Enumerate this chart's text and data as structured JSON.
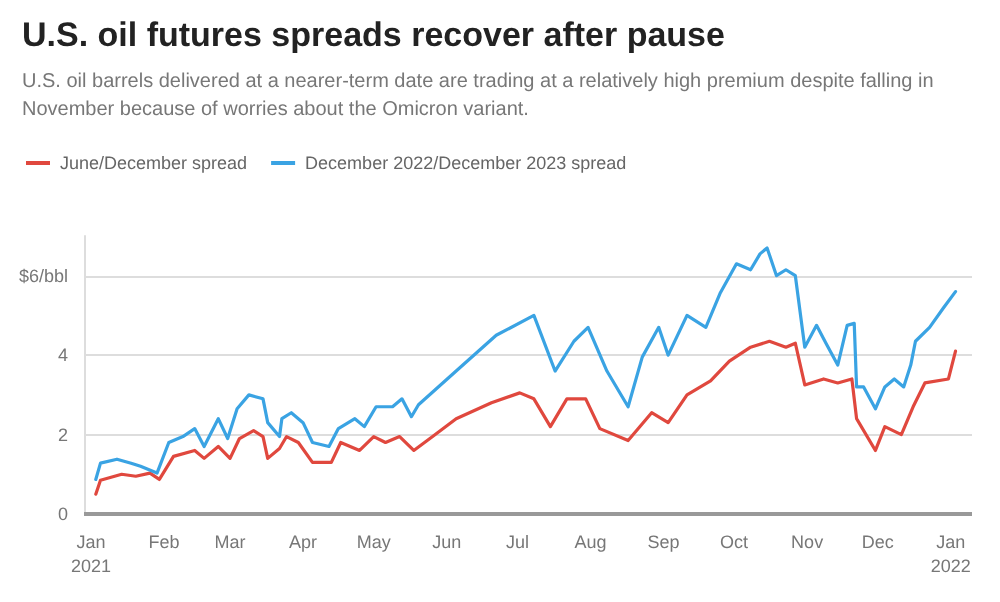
{
  "chart_data": {
    "type": "line",
    "title": "U.S. oil futures spreads recover after pause",
    "subtitle": "U.S. oil barrels delivered at a nearer-term date are trading at a relatively high premium despite falling in November because of worries about the Omicron variant.",
    "legend": "top left",
    "grid": "y",
    "marker": "none",
    "line_style": "solid",
    "xlim": [
      "2020-12-29",
      "2022-01-10"
    ],
    "xticks": [
      {
        "value": "2021-01-01",
        "label": "Jan\n2021"
      },
      {
        "value": "2021-02-01",
        "label": "Feb"
      },
      {
        "value": "2021-03-01",
        "label": "Mar"
      },
      {
        "value": "2021-04-01",
        "label": "Apr"
      },
      {
        "value": "2021-05-01",
        "label": "May"
      },
      {
        "value": "2021-06-01",
        "label": "Jun"
      },
      {
        "value": "2021-07-01",
        "label": "Jul"
      },
      {
        "value": "2021-08-01",
        "label": "Aug"
      },
      {
        "value": "2021-09-01",
        "label": "Sep"
      },
      {
        "value": "2021-10-01",
        "label": "Oct"
      },
      {
        "value": "2021-11-01",
        "label": "Nov"
      },
      {
        "value": "2021-12-01",
        "label": "Dec"
      },
      {
        "value": "2022-01-01",
        "label": "Jan\n2022"
      }
    ],
    "ylim": [
      0,
      7
    ],
    "yticks": [
      0,
      2,
      4,
      {
        "value": 6,
        "label": "$6/bbl"
      }
    ],
    "series": [
      {
        "name": "June/December spread",
        "color": "#e0483e",
        "x": [
          "2021-01-03",
          "2021-01-05",
          "2021-01-14",
          "2021-01-20",
          "2021-01-26",
          "2021-01-30",
          "2021-02-05",
          "2021-02-14",
          "2021-02-18",
          "2021-02-24",
          "2021-03-01",
          "2021-03-05",
          "2021-03-11",
          "2021-03-15",
          "2021-03-17",
          "2021-03-22",
          "2021-03-25",
          "2021-03-30",
          "2021-04-05",
          "2021-04-13",
          "2021-04-17",
          "2021-04-25",
          "2021-05-01",
          "2021-05-06",
          "2021-05-12",
          "2021-05-18",
          "2021-05-26",
          "2021-06-05",
          "2021-06-20",
          "2021-07-02",
          "2021-07-08",
          "2021-07-15",
          "2021-07-22",
          "2021-07-30",
          "2021-08-05",
          "2021-08-17",
          "2021-08-27",
          "2021-09-03",
          "2021-09-11",
          "2021-09-21",
          "2021-09-29",
          "2021-10-08",
          "2021-10-16",
          "2021-10-23",
          "2021-10-27",
          "2021-10-31",
          "2021-11-08",
          "2021-11-14",
          "2021-11-20",
          "2021-11-22",
          "2021-11-30",
          "2021-12-04",
          "2021-12-11",
          "2021-12-16",
          "2021-12-21",
          "2021-12-31",
          "2022-01-03"
        ],
        "values": [
          0.5,
          0.85,
          1.0,
          0.95,
          1.03,
          0.87,
          1.45,
          1.6,
          1.4,
          1.7,
          1.4,
          1.9,
          2.1,
          1.95,
          1.4,
          1.65,
          1.95,
          1.8,
          1.3,
          1.3,
          1.8,
          1.6,
          1.95,
          1.8,
          1.95,
          1.6,
          1.95,
          2.4,
          2.8,
          3.05,
          2.9,
          2.2,
          2.9,
          2.9,
          2.15,
          1.85,
          2.55,
          2.3,
          3.0,
          3.35,
          3.85,
          4.2,
          4.35,
          4.2,
          4.3,
          3.25,
          3.4,
          3.3,
          3.4,
          2.4,
          1.6,
          2.2,
          2.0,
          2.7,
          3.3,
          3.4,
          4.1
        ]
      },
      {
        "name": "December 2022/December 2023 spread",
        "color": "#3aa3e3",
        "x": [
          "2021-01-03",
          "2021-01-05",
          "2021-01-12",
          "2021-01-18",
          "2021-01-22",
          "2021-01-29",
          "2021-02-03",
          "2021-02-09",
          "2021-02-14",
          "2021-02-18",
          "2021-02-24",
          "2021-02-28",
          "2021-03-04",
          "2021-03-09",
          "2021-03-15",
          "2021-03-17",
          "2021-03-22",
          "2021-03-23",
          "2021-03-27",
          "2021-04-01",
          "2021-04-05",
          "2021-04-12",
          "2021-04-16",
          "2021-04-23",
          "2021-04-27",
          "2021-05-02",
          "2021-05-09",
          "2021-05-13",
          "2021-05-17",
          "2021-05-20",
          "2021-06-05",
          "2021-06-22",
          "2021-07-08",
          "2021-07-17",
          "2021-07-25",
          "2021-07-31",
          "2021-08-08",
          "2021-08-17",
          "2021-08-23",
          "2021-08-30",
          "2021-09-03",
          "2021-09-11",
          "2021-09-19",
          "2021-09-25",
          "2021-10-02",
          "2021-10-08",
          "2021-10-12",
          "2021-10-15",
          "2021-10-19",
          "2021-10-23",
          "2021-10-27",
          "2021-10-31",
          "2021-11-05",
          "2021-11-09",
          "2021-11-14",
          "2021-11-18",
          "2021-11-21",
          "2021-11-22",
          "2021-11-25",
          "2021-11-30",
          "2021-12-04",
          "2021-12-08",
          "2021-12-12",
          "2021-12-15",
          "2021-12-17",
          "2021-12-23",
          "2021-12-29",
          "2022-01-03"
        ],
        "values": [
          0.87,
          1.28,
          1.38,
          1.28,
          1.2,
          1.03,
          1.8,
          1.95,
          2.15,
          1.7,
          2.4,
          1.9,
          2.65,
          3.0,
          2.9,
          2.3,
          1.95,
          2.4,
          2.55,
          2.3,
          1.8,
          1.7,
          2.15,
          2.4,
          2.2,
          2.7,
          2.7,
          2.9,
          2.45,
          2.75,
          3.6,
          4.5,
          5.0,
          3.6,
          4.35,
          4.7,
          3.6,
          2.7,
          3.95,
          4.7,
          4.0,
          5.0,
          4.7,
          5.55,
          6.3,
          6.15,
          6.55,
          6.7,
          6.0,
          6.15,
          6.0,
          4.2,
          4.75,
          4.3,
          3.75,
          4.75,
          4.8,
          3.2,
          3.2,
          2.65,
          3.2,
          3.4,
          3.2,
          3.75,
          4.35,
          4.7,
          5.2,
          5.6
        ]
      }
    ]
  }
}
